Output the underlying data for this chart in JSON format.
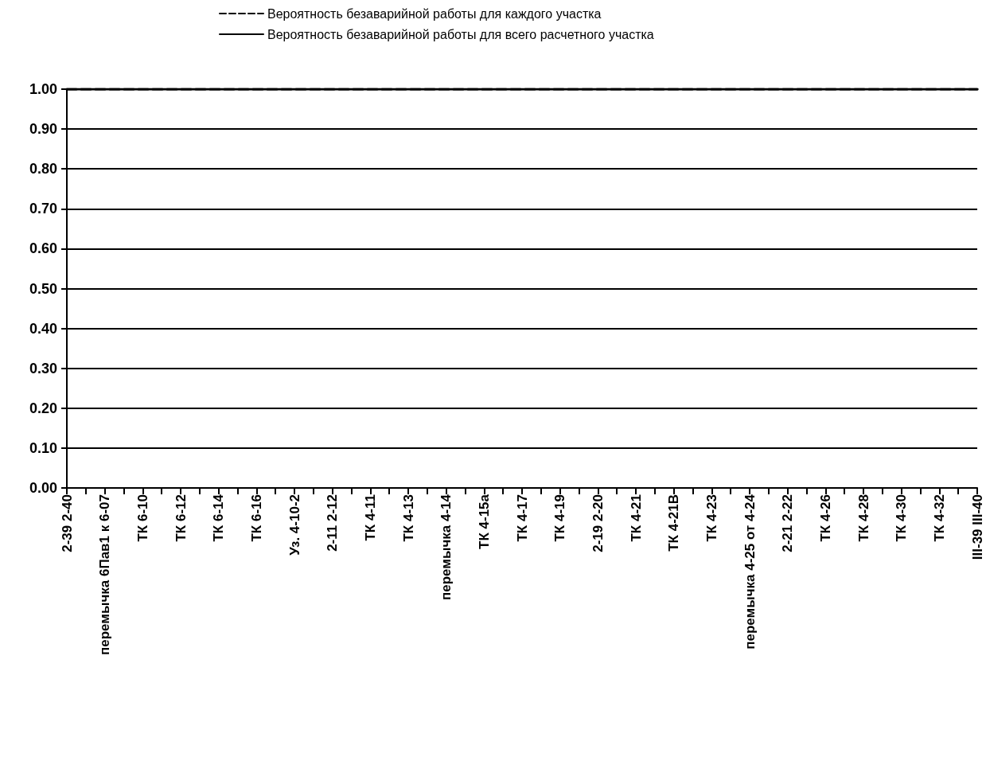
{
  "chart_data": {
    "type": "line",
    "categories": [
      "2-39 2-40",
      null,
      "перемычка 6Пав1 к 6-07",
      null,
      "ТК 6-10",
      null,
      "ТК 6-12",
      null,
      "ТК 6-14",
      null,
      "ТК 6-16",
      null,
      "Уз. 4-10-2",
      null,
      "2-11 2-12",
      null,
      "ТК 4-11",
      null,
      "ТК 4-13",
      null,
      "перемычка 4-14",
      null,
      "ТК 4-15а",
      null,
      "ТК 4-17",
      null,
      "ТК 4-19",
      null,
      "2-19 2-20",
      null,
      "ТК 4-21",
      null,
      "ТК 4-21В",
      null,
      "ТК 4-23",
      null,
      "перемычка 4-25 от 4-24",
      null,
      "2-21 2-22",
      null,
      "ТК 4-26",
      null,
      "ТК 4-28",
      null,
      "ТК 4-30",
      null,
      "ТК 4-32",
      null,
      "III-39 III-40"
    ],
    "series": [
      {
        "name": "Вероятность безаварийной работы для каждого участка",
        "color": "#000000",
        "line_style": "dashed",
        "values": [
          1,
          1,
          1,
          1,
          1,
          1,
          1,
          1,
          1,
          1,
          1,
          1,
          1,
          1,
          1,
          1,
          1,
          1,
          1,
          1,
          1,
          1,
          1,
          1,
          1,
          1,
          1,
          1,
          1,
          1,
          1,
          1,
          1,
          1,
          1,
          1,
          1,
          1,
          1,
          1,
          1,
          1,
          1,
          1,
          1,
          1,
          1,
          1,
          1
        ]
      },
      {
        "name": "Вероятность безаварийной работы для всего расчетного участка",
        "color": "#000000",
        "line_style": "solid",
        "values": [
          1,
          1,
          1,
          1,
          1,
          1,
          1,
          1,
          1,
          1,
          1,
          1,
          1,
          1,
          1,
          1,
          1,
          1,
          1,
          1,
          1,
          1,
          1,
          1,
          1,
          1,
          1,
          1,
          1,
          1,
          1,
          1,
          1,
          1,
          1,
          1,
          1,
          1,
          1,
          1,
          1,
          1,
          1,
          1,
          1,
          1,
          1,
          1,
          1
        ]
      }
    ],
    "ylim": [
      0,
      1
    ],
    "yticks": [
      {
        "value": 0,
        "label": "0.00"
      },
      {
        "value": 0.1,
        "label": "0.10"
      },
      {
        "value": 0.2,
        "label": "0.20"
      },
      {
        "value": 0.3,
        "label": "0.30"
      },
      {
        "value": 0.4,
        "label": "0.40"
      },
      {
        "value": 0.5,
        "label": "0.50"
      },
      {
        "value": 0.6,
        "label": "0.60"
      },
      {
        "value": 0.7,
        "label": "0.70"
      },
      {
        "value": 0.8,
        "label": "0.80"
      },
      {
        "value": 0.9,
        "label": "0.90"
      },
      {
        "value": 1,
        "label": "1.00"
      }
    ],
    "grid": "y",
    "legend": "top",
    "marker": "none"
  }
}
